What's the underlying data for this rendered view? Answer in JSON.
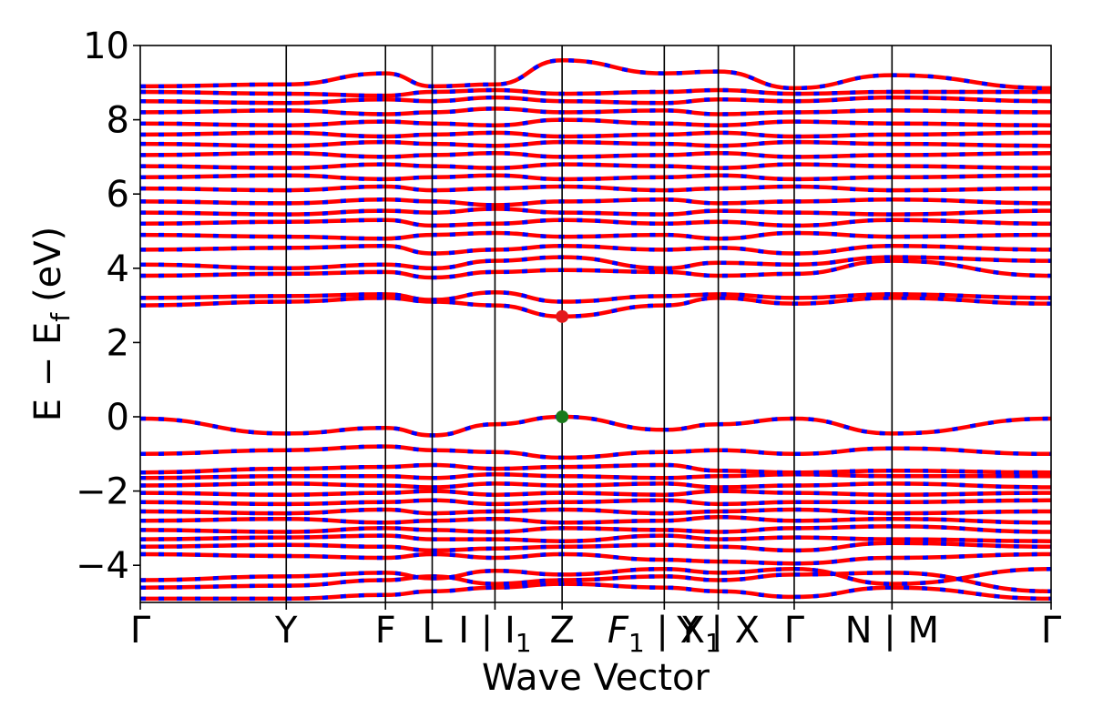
{
  "chart_data": {
    "type": "line",
    "title": "",
    "xlabel": "Wave Vector",
    "ylabel": "E − E",
    "ylabel_sub": "f",
    "ylabel_unit": "(eV)",
    "ylim": [
      -5,
      10
    ],
    "yticks": [
      -4,
      -2,
      0,
      2,
      4,
      6,
      8,
      10
    ],
    "ytick_labels": [
      "−4",
      "−2",
      "0",
      "2",
      "4",
      "6",
      "8",
      "10"
    ],
    "xlim": [
      0,
      6.24
    ],
    "grid": false,
    "legend": "none",
    "spin_up_color": "#ff0000",
    "spin_down_color": "#0000ff",
    "kpoint_positions": [
      0,
      1.0,
      1.68,
      2.0,
      2.43,
      2.89,
      3.59,
      3.96,
      4.48,
      5.15,
      6.24
    ],
    "kpoint_labels": [
      {
        "x": 0,
        "label": "Γ"
      },
      {
        "x": 1.0,
        "label": "Y"
      },
      {
        "x": 1.68,
        "label": "F"
      },
      {
        "x": 2.0,
        "label": "L"
      },
      {
        "x": 2.43,
        "label": "I | I",
        "sub": "1"
      },
      {
        "x": 2.89,
        "label": "Z"
      },
      {
        "x": 3.59,
        "label": "F",
        "sub": "1",
        "suffix": " | X",
        "sub2": "1"
      },
      {
        "x": 3.96,
        "label": "Y | X"
      },
      {
        "x": 4.48,
        "label": "Γ"
      },
      {
        "x": 5.15,
        "label": "N | M"
      },
      {
        "x": 6.24,
        "label": "Γ"
      }
    ],
    "cbm_point": {
      "x": 2.89,
      "y": 2.7,
      "color": "#e31a1c"
    },
    "vbm_point": {
      "x": 2.89,
      "y": 0.0,
      "color": "#1a7a1a"
    },
    "bands_at_kpoints": [
      [
        -4.9,
        -4.9,
        -4.8,
        -4.7,
        -4.6,
        -4.5,
        -4.6,
        -4.7,
        -4.85,
        -4.6,
        -4.9
      ],
      [
        -4.6,
        -4.55,
        -4.4,
        -4.3,
        -4.5,
        -4.4,
        -4.3,
        -4.4,
        -4.25,
        -4.2,
        -4.7
      ],
      [
        -4.4,
        -4.3,
        -4.2,
        -4.35,
        -4.15,
        -4.25,
        -4.1,
        -4.2,
        -4.1,
        -4.5,
        -4.1
      ],
      [
        -3.7,
        -3.75,
        -3.8,
        -3.7,
        -3.8,
        -3.7,
        -3.85,
        -3.9,
        -3.95,
        -3.8,
        -3.7
      ],
      [
        -3.5,
        -3.45,
        -3.5,
        -3.6,
        -3.55,
        -3.5,
        -3.45,
        -3.5,
        -3.6,
        -3.4,
        -3.5
      ],
      [
        -3.3,
        -3.25,
        -3.2,
        -3.3,
        -3.3,
        -3.35,
        -3.2,
        -3.3,
        -3.25,
        -3.3,
        -3.35
      ],
      [
        -3.05,
        -3.1,
        -3.0,
        -3.05,
        -3.1,
        -3.0,
        -3.05,
        -3.1,
        -3.0,
        -2.95,
        -3.1
      ],
      [
        -2.8,
        -2.75,
        -2.85,
        -2.8,
        -2.75,
        -2.85,
        -2.8,
        -2.7,
        -2.8,
        -2.75,
        -2.85
      ],
      [
        -2.55,
        -2.6,
        -2.5,
        -2.6,
        -2.55,
        -2.5,
        -2.6,
        -2.55,
        -2.5,
        -2.6,
        -2.55
      ],
      [
        -2.3,
        -2.35,
        -2.3,
        -2.25,
        -2.35,
        -2.3,
        -2.25,
        -2.35,
        -2.3,
        -2.3,
        -2.25
      ],
      [
        -2.05,
        -2.1,
        -2.05,
        -2.0,
        -2.1,
        -2.05,
        -2.1,
        -2.0,
        -2.05,
        -2.1,
        -2.05
      ],
      [
        -1.85,
        -1.8,
        -1.85,
        -1.9,
        -1.8,
        -1.85,
        -1.8,
        -1.9,
        -1.85,
        -1.8,
        -1.9
      ],
      [
        -1.65,
        -1.6,
        -1.6,
        -1.65,
        -1.55,
        -1.6,
        -1.65,
        -1.6,
        -1.55,
        -1.6,
        -1.6
      ],
      [
        -1.5,
        -1.4,
        -1.35,
        -1.3,
        -1.4,
        -1.35,
        -1.3,
        -1.45,
        -1.5,
        -1.45,
        -1.5
      ],
      [
        -1.0,
        -0.9,
        -0.8,
        -0.9,
        -0.95,
        -1.1,
        -0.95,
        -0.9,
        -1.0,
        -0.85,
        -1.0
      ],
      [
        -0.05,
        -0.45,
        -0.3,
        -0.5,
        -0.2,
        0.0,
        -0.35,
        -0.2,
        -0.05,
        -0.45,
        -0.05
      ],
      [
        3.0,
        3.1,
        3.2,
        3.1,
        3.0,
        2.7,
        3.0,
        3.2,
        3.05,
        3.2,
        3.05
      ],
      [
        3.2,
        3.25,
        3.3,
        3.15,
        3.35,
        3.1,
        3.25,
        3.3,
        3.2,
        3.3,
        3.2
      ],
      [
        3.8,
        3.85,
        3.9,
        3.75,
        3.9,
        3.95,
        3.9,
        3.8,
        3.85,
        4.2,
        3.8
      ],
      [
        4.1,
        4.0,
        4.1,
        4.0,
        4.2,
        4.3,
        4.0,
        4.15,
        4.1,
        4.3,
        4.2
      ],
      [
        4.5,
        4.55,
        4.6,
        4.4,
        4.5,
        4.6,
        4.5,
        4.55,
        4.4,
        4.6,
        4.5
      ],
      [
        4.9,
        4.85,
        4.8,
        4.9,
        4.95,
        4.85,
        4.9,
        4.8,
        4.95,
        4.85,
        4.9
      ],
      [
        5.2,
        5.25,
        5.3,
        5.15,
        5.2,
        5.3,
        5.2,
        5.25,
        5.15,
        5.3,
        5.2
      ],
      [
        5.5,
        5.45,
        5.55,
        5.5,
        5.6,
        5.5,
        5.45,
        5.55,
        5.5,
        5.45,
        5.55
      ],
      [
        5.8,
        5.75,
        5.85,
        5.8,
        5.7,
        5.8,
        5.85,
        5.75,
        5.8,
        5.85,
        5.75
      ],
      [
        6.15,
        6.1,
        6.2,
        6.1,
        6.15,
        6.2,
        6.1,
        6.15,
        6.2,
        6.1,
        6.15
      ],
      [
        6.45,
        6.5,
        6.4,
        6.45,
        6.5,
        6.4,
        6.45,
        6.5,
        6.4,
        6.45,
        6.5
      ],
      [
        6.75,
        6.7,
        6.8,
        6.75,
        6.7,
        6.8,
        6.75,
        6.7,
        6.8,
        6.75,
        6.7
      ],
      [
        7.05,
        7.1,
        7.0,
        7.05,
        7.1,
        7.0,
        7.05,
        7.1,
        7.0,
        7.05,
        7.1
      ],
      [
        7.35,
        7.3,
        7.4,
        7.35,
        7.3,
        7.4,
        7.35,
        7.3,
        7.4,
        7.35,
        7.3
      ],
      [
        7.6,
        7.65,
        7.55,
        7.6,
        7.65,
        7.55,
        7.6,
        7.65,
        7.55,
        7.6,
        7.65
      ],
      [
        7.9,
        7.85,
        7.95,
        7.9,
        7.85,
        8.0,
        7.9,
        7.85,
        7.95,
        7.9,
        7.85
      ],
      [
        8.2,
        8.25,
        8.15,
        8.2,
        8.3,
        8.2,
        8.25,
        8.15,
        8.2,
        8.25,
        8.2
      ],
      [
        8.5,
        8.45,
        8.55,
        8.5,
        8.6,
        8.5,
        8.45,
        8.55,
        8.5,
        8.6,
        8.5
      ],
      [
        8.75,
        8.7,
        8.65,
        8.75,
        8.8,
        8.7,
        8.75,
        8.8,
        8.7,
        8.75,
        8.75
      ],
      [
        8.9,
        8.95,
        9.25,
        8.9,
        8.95,
        9.6,
        9.25,
        9.3,
        8.85,
        9.2,
        8.85
      ]
    ]
  }
}
